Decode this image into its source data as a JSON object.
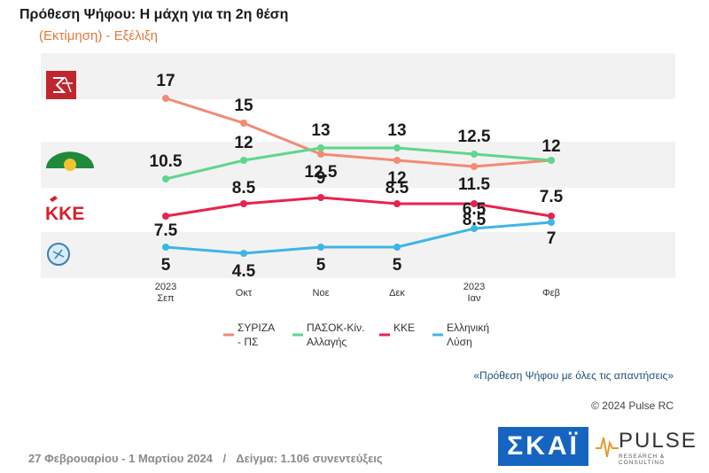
{
  "header": {
    "title": "Πρόθεση Ψήφου: Η μάχη για τη 2η θέση",
    "subtitle": "(Εκτίμηση) - Εξέλιξη"
  },
  "note": "«Πρόθεση Ψήφου με όλες τις απαντήσεις»",
  "copyright": "© 2024 Pulse RC",
  "footer": {
    "dates": "27 Φεβρουαρίου - 1 Μαρτίου 2024",
    "separator": "/",
    "sample": "Δείγμα:  1.106 συνεντεύξεις"
  },
  "logos": {
    "skai": "ΣΚΑΪ",
    "pulse_name": "PULSE",
    "pulse_sub": "RESEARCH & CONSULTING",
    "kke": "ΚΚΕ"
  },
  "chart_data": {
    "type": "line",
    "categories": [
      [
        "2023",
        "Σεπ"
      ],
      [
        "Οκτ"
      ],
      [
        "Νοε"
      ],
      [
        "Δεκ"
      ],
      [
        "2023",
        "Ιαν"
      ],
      [
        "Φεβ"
      ]
    ],
    "series": [
      {
        "name": "ΣΥΡΙΖΑ - ΠΣ",
        "values": [
          17,
          15,
          12.5,
          12,
          11.5,
          12
        ],
        "color": "#f28b74",
        "labels": [
          "17",
          "15",
          "12.5",
          "12",
          "11.5",
          ""
        ],
        "legend": [
          "ΣΥΡΙΖΑ",
          "- ΠΣ"
        ]
      },
      {
        "name": "ΠΑΣΟΚ-Κίν. Αλλαγής",
        "values": [
          10.5,
          12,
          13,
          13,
          12.5,
          12
        ],
        "color": "#5ed68e",
        "labels": [
          "10.5",
          "12",
          "13",
          "13",
          "12.5",
          "12"
        ],
        "legend": [
          "ΠΑΣΟΚ-Κίν.",
          "Αλλαγής"
        ]
      },
      {
        "name": "ΚΚΕ",
        "values": [
          7.5,
          8.5,
          9,
          8.5,
          8.5,
          7.5
        ],
        "color": "#e8234f",
        "labels": [
          "7.5",
          "8.5",
          "9",
          "8.5",
          "8.5",
          "7.5"
        ],
        "legend": [
          "ΚΚΕ"
        ]
      },
      {
        "name": "Ελληνική Λύση",
        "values": [
          5,
          4.5,
          5,
          5,
          6.5,
          7
        ],
        "color": "#3db5e8",
        "labels": [
          "5",
          "4.5",
          "5",
          "5",
          "6.5",
          "7"
        ],
        "legend": [
          "Ελληνική",
          "Λύση"
        ]
      }
    ],
    "legend_position": "bottom",
    "grid": false
  }
}
